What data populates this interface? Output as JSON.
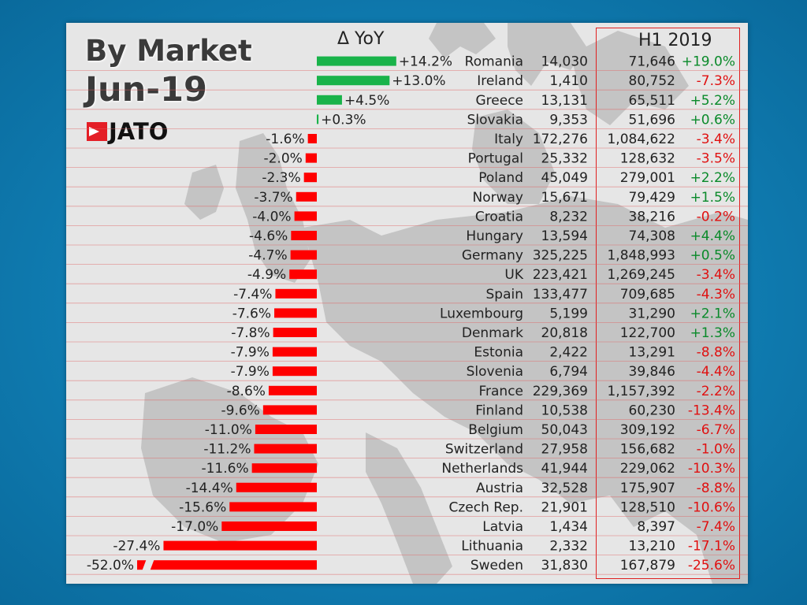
{
  "title_line1": "By Market",
  "title_line2": "Jun-19",
  "logo_text": "JATO",
  "yoy_header": "Δ YoY",
  "h1_header": "H1 2019",
  "colors": {
    "positive": "#19b34a",
    "negative": "#ff0000",
    "positive_text": "#0a8a2a",
    "negative_text": "#e01010",
    "rule": "#e06060"
  },
  "chart_data": {
    "type": "bar",
    "orientation": "horizontal",
    "value_unit": "%",
    "columns": [
      "Market",
      "Jun-19",
      "H1 2019",
      "H1 Δ YoY"
    ],
    "rows": [
      {
        "market": "Romania",
        "yoy": 14.2,
        "yoy_label": "+14.2%",
        "jun": "14,030",
        "h1": "71,646",
        "h1_yoy": "+19.0%"
      },
      {
        "market": "Ireland",
        "yoy": 13.0,
        "yoy_label": "+13.0%",
        "jun": "1,410",
        "h1": "80,752",
        "h1_yoy": "-7.3%"
      },
      {
        "market": "Greece",
        "yoy": 4.5,
        "yoy_label": "+4.5%",
        "jun": "13,131",
        "h1": "65,511",
        "h1_yoy": "+5.2%"
      },
      {
        "market": "Slovakia",
        "yoy": 0.3,
        "yoy_label": "+0.3%",
        "jun": "9,353",
        "h1": "51,696",
        "h1_yoy": "+0.6%"
      },
      {
        "market": "Italy",
        "yoy": -1.6,
        "yoy_label": "-1.6%",
        "jun": "172,276",
        "h1": "1,084,622",
        "h1_yoy": "-3.4%"
      },
      {
        "market": "Portugal",
        "yoy": -2.0,
        "yoy_label": "-2.0%",
        "jun": "25,332",
        "h1": "128,632",
        "h1_yoy": "-3.5%"
      },
      {
        "market": "Poland",
        "yoy": -2.3,
        "yoy_label": "-2.3%",
        "jun": "45,049",
        "h1": "279,001",
        "h1_yoy": "+2.2%"
      },
      {
        "market": "Norway",
        "yoy": -3.7,
        "yoy_label": "-3.7%",
        "jun": "15,671",
        "h1": "79,429",
        "h1_yoy": "+1.5%"
      },
      {
        "market": "Croatia",
        "yoy": -4.0,
        "yoy_label": "-4.0%",
        "jun": "8,232",
        "h1": "38,216",
        "h1_yoy": "-0.2%"
      },
      {
        "market": "Hungary",
        "yoy": -4.6,
        "yoy_label": "-4.6%",
        "jun": "13,594",
        "h1": "74,308",
        "h1_yoy": "+4.4%"
      },
      {
        "market": "Germany",
        "yoy": -4.7,
        "yoy_label": "-4.7%",
        "jun": "325,225",
        "h1": "1,848,993",
        "h1_yoy": "+0.5%"
      },
      {
        "market": "UK",
        "yoy": -4.9,
        "yoy_label": "-4.9%",
        "jun": "223,421",
        "h1": "1,269,245",
        "h1_yoy": "-3.4%"
      },
      {
        "market": "Spain",
        "yoy": -7.4,
        "yoy_label": "-7.4%",
        "jun": "133,477",
        "h1": "709,685",
        "h1_yoy": "-4.3%"
      },
      {
        "market": "Luxembourg",
        "yoy": -7.6,
        "yoy_label": "-7.6%",
        "jun": "5,199",
        "h1": "31,290",
        "h1_yoy": "+2.1%"
      },
      {
        "market": "Denmark",
        "yoy": -7.8,
        "yoy_label": "-7.8%",
        "jun": "20,818",
        "h1": "122,700",
        "h1_yoy": "+1.3%"
      },
      {
        "market": "Estonia",
        "yoy": -7.9,
        "yoy_label": "-7.9%",
        "jun": "2,422",
        "h1": "13,291",
        "h1_yoy": "-8.8%"
      },
      {
        "market": "Slovenia",
        "yoy": -7.9,
        "yoy_label": "-7.9%",
        "jun": "6,794",
        "h1": "39,846",
        "h1_yoy": "-4.4%"
      },
      {
        "market": "France",
        "yoy": -8.6,
        "yoy_label": "-8.6%",
        "jun": "229,369",
        "h1": "1,157,392",
        "h1_yoy": "-2.2%"
      },
      {
        "market": "Finland",
        "yoy": -9.6,
        "yoy_label": "-9.6%",
        "jun": "10,538",
        "h1": "60,230",
        "h1_yoy": "-13.4%"
      },
      {
        "market": "Belgium",
        "yoy": -11.0,
        "yoy_label": "-11.0%",
        "jun": "50,043",
        "h1": "309,192",
        "h1_yoy": "-6.7%"
      },
      {
        "market": "Switzerland",
        "yoy": -11.2,
        "yoy_label": "-11.2%",
        "jun": "27,958",
        "h1": "156,682",
        "h1_yoy": "-1.0%"
      },
      {
        "market": "Netherlands",
        "yoy": -11.6,
        "yoy_label": "-11.6%",
        "jun": "41,944",
        "h1": "229,062",
        "h1_yoy": "-10.3%"
      },
      {
        "market": "Austria",
        "yoy": -14.4,
        "yoy_label": "-14.4%",
        "jun": "32,528",
        "h1": "175,907",
        "h1_yoy": "-8.8%"
      },
      {
        "market": "Czech Rep.",
        "yoy": -15.6,
        "yoy_label": "-15.6%",
        "jun": "21,901",
        "h1": "128,510",
        "h1_yoy": "-10.6%"
      },
      {
        "market": "Latvia",
        "yoy": -17.0,
        "yoy_label": "-17.0%",
        "jun": "1,434",
        "h1": "8,397",
        "h1_yoy": "-7.4%"
      },
      {
        "market": "Lithuania",
        "yoy": -27.4,
        "yoy_label": "-27.4%",
        "jun": "2,332",
        "h1": "13,210",
        "h1_yoy": "-17.1%"
      },
      {
        "market": "Sweden",
        "yoy": -52.0,
        "yoy_label": "-52.0%",
        "jun": "31,830",
        "h1": "167,879",
        "h1_yoy": "-25.6%",
        "bar_truncated": true
      }
    ]
  }
}
